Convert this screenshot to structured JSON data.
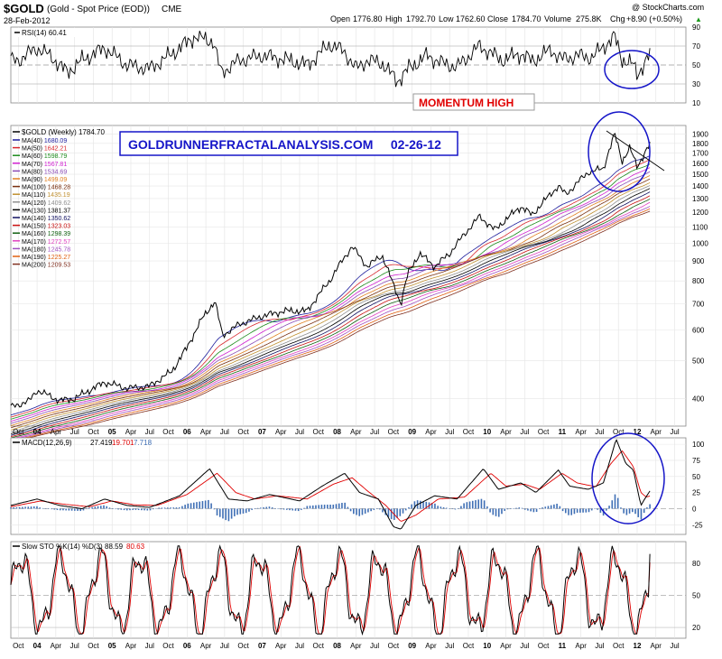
{
  "header": {
    "symbol": "$GOLD",
    "name": "(Gold - Spot Price (EOD))",
    "exchange": "CME",
    "date": "28-Feb-2012",
    "copyright": "@ StockCharts.com",
    "quote": {
      "open_label": "Open",
      "open": "1776.80",
      "high_label": "High",
      "high": "1792.70",
      "low_label": "Low",
      "low": "1762.60",
      "close_label": "Close",
      "close": "1784.70",
      "volume_label": "Volume",
      "volume": "275.8K",
      "chg_label": "Chg",
      "chg": "+8.90 (+0.50%)",
      "chg_arrow": "▲"
    }
  },
  "annotations": {
    "momentum": "MOMENTUM HIGH",
    "banner": "GOLDRUNNERFRACTALANALYSIS.COM     02-26-12"
  },
  "colors": {
    "price": "#000000",
    "signal": "#e00000",
    "histogram": "#3f6fb5",
    "annotation_box": "#1515c8",
    "momentum_text": "#e00000",
    "grid": "#dcdcdc"
  },
  "chart_data": [
    {
      "type": "line",
      "panel": "rsi",
      "legend": "RSI(14) 60.41",
      "y_ticks": [
        90,
        70,
        50,
        30,
        10
      ],
      "ylim": [
        10,
        90
      ],
      "overbought": 70,
      "oversold": 30,
      "last": 60.41,
      "points": [
        [
          2003.75,
          55
        ],
        [
          2004.0,
          68
        ],
        [
          2004.2,
          58
        ],
        [
          2004.4,
          42
        ],
        [
          2004.6,
          55
        ],
        [
          2004.9,
          68
        ],
        [
          2005.2,
          50
        ],
        [
          2005.5,
          46
        ],
        [
          2005.8,
          62
        ],
        [
          2006.1,
          80
        ],
        [
          2006.35,
          75
        ],
        [
          2006.45,
          42
        ],
        [
          2006.7,
          55
        ],
        [
          2007.0,
          60
        ],
        [
          2007.3,
          56
        ],
        [
          2007.6,
          50
        ],
        [
          2007.9,
          72
        ],
        [
          2008.1,
          64
        ],
        [
          2008.25,
          46
        ],
        [
          2008.4,
          55
        ],
        [
          2008.6,
          52
        ],
        [
          2008.8,
          33
        ],
        [
          2008.95,
          46
        ],
        [
          2009.2,
          60
        ],
        [
          2009.4,
          52
        ],
        [
          2009.6,
          48
        ],
        [
          2009.9,
          70
        ],
        [
          2010.2,
          55
        ],
        [
          2010.45,
          62
        ],
        [
          2010.6,
          54
        ],
        [
          2010.85,
          66
        ],
        [
          2011.0,
          56
        ],
        [
          2011.2,
          60
        ],
        [
          2011.4,
          58
        ],
        [
          2011.6,
          73
        ],
        [
          2011.7,
          80
        ],
        [
          2011.8,
          56
        ],
        [
          2011.95,
          50
        ],
        [
          2012.0,
          40
        ],
        [
          2012.1,
          52
        ],
        [
          2012.17,
          60.41
        ]
      ]
    },
    {
      "type": "line",
      "panel": "price",
      "legend": "$GOLD (Weekly) 1784.70",
      "scale": "log",
      "ylim": [
        340,
        2000
      ],
      "y_ticks": [
        400,
        500,
        600,
        700,
        800,
        900,
        1000,
        1100,
        1200,
        1300,
        1400,
        1500,
        1600,
        1700,
        1800,
        1900
      ],
      "x_ticks": [
        "Oct",
        "04",
        "Apr",
        "Jul",
        "Oct",
        "05",
        "Apr",
        "Jul",
        "Oct",
        "06",
        "Apr",
        "Jul",
        "Oct",
        "07",
        "Apr",
        "Jul",
        "Oct",
        "08",
        "Apr",
        "Jul",
        "Oct",
        "09",
        "Apr",
        "Jul",
        "Oct",
        "10",
        "Apr",
        "Jul",
        "Oct",
        "11",
        "Apr",
        "Jul",
        "Oct",
        "12",
        "Apr",
        "Jul"
      ],
      "x_tick_years": [
        2003.75,
        2004.0,
        2004.25,
        2004.5,
        2004.75,
        2005.0,
        2005.25,
        2005.5,
        2005.75,
        2006.0,
        2006.25,
        2006.5,
        2006.75,
        2007.0,
        2007.25,
        2007.5,
        2007.75,
        2008.0,
        2008.25,
        2008.5,
        2008.75,
        2009.0,
        2009.25,
        2009.5,
        2009.75,
        2010.0,
        2010.25,
        2010.5,
        2010.75,
        2011.0,
        2011.25,
        2011.5,
        2011.75,
        2012.0,
        2012.25,
        2012.5
      ],
      "xlim": [
        2003.65,
        2012.65
      ],
      "price": [
        [
          2003.65,
          380
        ],
        [
          2003.9,
          395
        ],
        [
          2004.0,
          420
        ],
        [
          2004.3,
          395
        ],
        [
          2004.5,
          400
        ],
        [
          2004.9,
          440
        ],
        [
          2005.2,
          425
        ],
        [
          2005.5,
          430
        ],
        [
          2005.8,
          470
        ],
        [
          2006.0,
          540
        ],
        [
          2006.2,
          640
        ],
        [
          2006.37,
          710
        ],
        [
          2006.47,
          580
        ],
        [
          2006.7,
          620
        ],
        [
          2007.0,
          650
        ],
        [
          2007.3,
          670
        ],
        [
          2007.6,
          670
        ],
        [
          2007.9,
          800
        ],
        [
          2008.2,
          980
        ],
        [
          2008.4,
          870
        ],
        [
          2008.6,
          930
        ],
        [
          2008.75,
          780
        ],
        [
          2008.85,
          700
        ],
        [
          2008.95,
          840
        ],
        [
          2009.1,
          940
        ],
        [
          2009.3,
          870
        ],
        [
          2009.5,
          940
        ],
        [
          2009.9,
          1170
        ],
        [
          2010.1,
          1080
        ],
        [
          2010.45,
          1240
        ],
        [
          2010.6,
          1180
        ],
        [
          2010.95,
          1400
        ],
        [
          2011.05,
          1330
        ],
        [
          2011.35,
          1520
        ],
        [
          2011.55,
          1550
        ],
        [
          2011.7,
          1900
        ],
        [
          2011.8,
          1620
        ],
        [
          2011.9,
          1750
        ],
        [
          2012.0,
          1570
        ],
        [
          2012.17,
          1784.7
        ]
      ],
      "moving_averages": [
        {
          "name": "MA(40)",
          "value": "1680.09",
          "color": "#1c1c9c"
        },
        {
          "name": "MA(50)",
          "value": "1642.21",
          "color": "#d8262c"
        },
        {
          "name": "MA(60)",
          "value": "1598.79",
          "color": "#1a8a1a"
        },
        {
          "name": "MA(70)",
          "value": "1567.81",
          "color": "#d020d0"
        },
        {
          "name": "MA(80)",
          "value": "1534.69",
          "color": "#8a4ab5"
        },
        {
          "name": "MA(90)",
          "value": "1499.09",
          "color": "#e08020"
        },
        {
          "name": "MA(100)",
          "value": "1468.28",
          "color": "#7a3010"
        },
        {
          "name": "MA(110)",
          "value": "1435.19",
          "color": "#c09030"
        },
        {
          "name": "MA(120)",
          "value": "1409.62",
          "color": "#909090"
        },
        {
          "name": "MA(130)",
          "value": "1381.37",
          "color": "#000000"
        },
        {
          "name": "MA(140)",
          "value": "1350.62",
          "color": "#101060"
        },
        {
          "name": "MA(150)",
          "value": "1323.03",
          "color": "#c81010"
        },
        {
          "name": "MA(160)",
          "value": "1298.39",
          "color": "#106010"
        },
        {
          "name": "MA(170)",
          "value": "1272.57",
          "color": "#e040c0"
        },
        {
          "name": "MA(180)",
          "value": "1245.78",
          "color": "#a050c0"
        },
        {
          "name": "MA(190)",
          "value": "1225.27",
          "color": "#e06010"
        },
        {
          "name": "MA(200)",
          "value": "1209.53",
          "color": "#803020"
        }
      ]
    },
    {
      "type": "line",
      "panel": "macd",
      "legend_name": "MACD(12,26,9)",
      "legend_macd": "27.419",
      "legend_signal": "19.701",
      "legend_hist": "7.718",
      "y_ticks": [
        100,
        75,
        50,
        25,
        0,
        -25
      ],
      "ylim": [
        -40,
        110
      ],
      "macd": [
        [
          2003.65,
          5
        ],
        [
          2004.0,
          15
        ],
        [
          2004.3,
          5
        ],
        [
          2004.6,
          0
        ],
        [
          2004.9,
          15
        ],
        [
          2005.2,
          5
        ],
        [
          2005.5,
          2
        ],
        [
          2005.9,
          20
        ],
        [
          2006.3,
          62
        ],
        [
          2006.55,
          15
        ],
        [
          2006.8,
          12
        ],
        [
          2007.1,
          22
        ],
        [
          2007.5,
          12
        ],
        [
          2007.8,
          35
        ],
        [
          2008.1,
          55
        ],
        [
          2008.3,
          25
        ],
        [
          2008.55,
          15
        ],
        [
          2008.75,
          -28
        ],
        [
          2008.85,
          -32
        ],
        [
          2009.05,
          5
        ],
        [
          2009.3,
          20
        ],
        [
          2009.6,
          15
        ],
        [
          2009.95,
          62
        ],
        [
          2010.15,
          30
        ],
        [
          2010.45,
          40
        ],
        [
          2010.65,
          25
        ],
        [
          2010.95,
          60
        ],
        [
          2011.1,
          35
        ],
        [
          2011.35,
          30
        ],
        [
          2011.55,
          40
        ],
        [
          2011.72,
          108
        ],
        [
          2011.85,
          70
        ],
        [
          2011.95,
          60
        ],
        [
          2012.05,
          5
        ],
        [
          2012.1,
          15
        ],
        [
          2012.17,
          27.419
        ]
      ],
      "signal": [
        [
          2003.65,
          3
        ],
        [
          2004.05,
          12
        ],
        [
          2004.35,
          7
        ],
        [
          2004.7,
          3
        ],
        [
          2005.0,
          12
        ],
        [
          2005.3,
          6
        ],
        [
          2005.6,
          5
        ],
        [
          2006.0,
          22
        ],
        [
          2006.4,
          55
        ],
        [
          2006.65,
          25
        ],
        [
          2006.9,
          15
        ],
        [
          2007.2,
          20
        ],
        [
          2007.6,
          15
        ],
        [
          2007.95,
          38
        ],
        [
          2008.2,
          48
        ],
        [
          2008.4,
          28
        ],
        [
          2008.65,
          5
        ],
        [
          2008.85,
          -20
        ],
        [
          2009.05,
          -10
        ],
        [
          2009.35,
          15
        ],
        [
          2009.7,
          18
        ],
        [
          2010.05,
          55
        ],
        [
          2010.25,
          35
        ],
        [
          2010.5,
          38
        ],
        [
          2010.7,
          30
        ],
        [
          2011.0,
          55
        ],
        [
          2011.2,
          40
        ],
        [
          2011.45,
          34
        ],
        [
          2011.65,
          70
        ],
        [
          2011.8,
          90
        ],
        [
          2011.95,
          65
        ],
        [
          2012.05,
          25
        ],
        [
          2012.12,
          18
        ],
        [
          2012.17,
          19.701
        ]
      ],
      "histogram_summary": "bars of MACD minus signal"
    },
    {
      "type": "line",
      "panel": "stochastic",
      "legend_name": "Slow STO %K(14) %D(3)",
      "legend_k": "88.59",
      "legend_d": "80.63",
      "y_ticks": [
        80,
        50,
        20
      ],
      "ylim": [
        10,
        100
      ],
      "last_k": 88.59,
      "last_d": 80.63
    }
  ]
}
